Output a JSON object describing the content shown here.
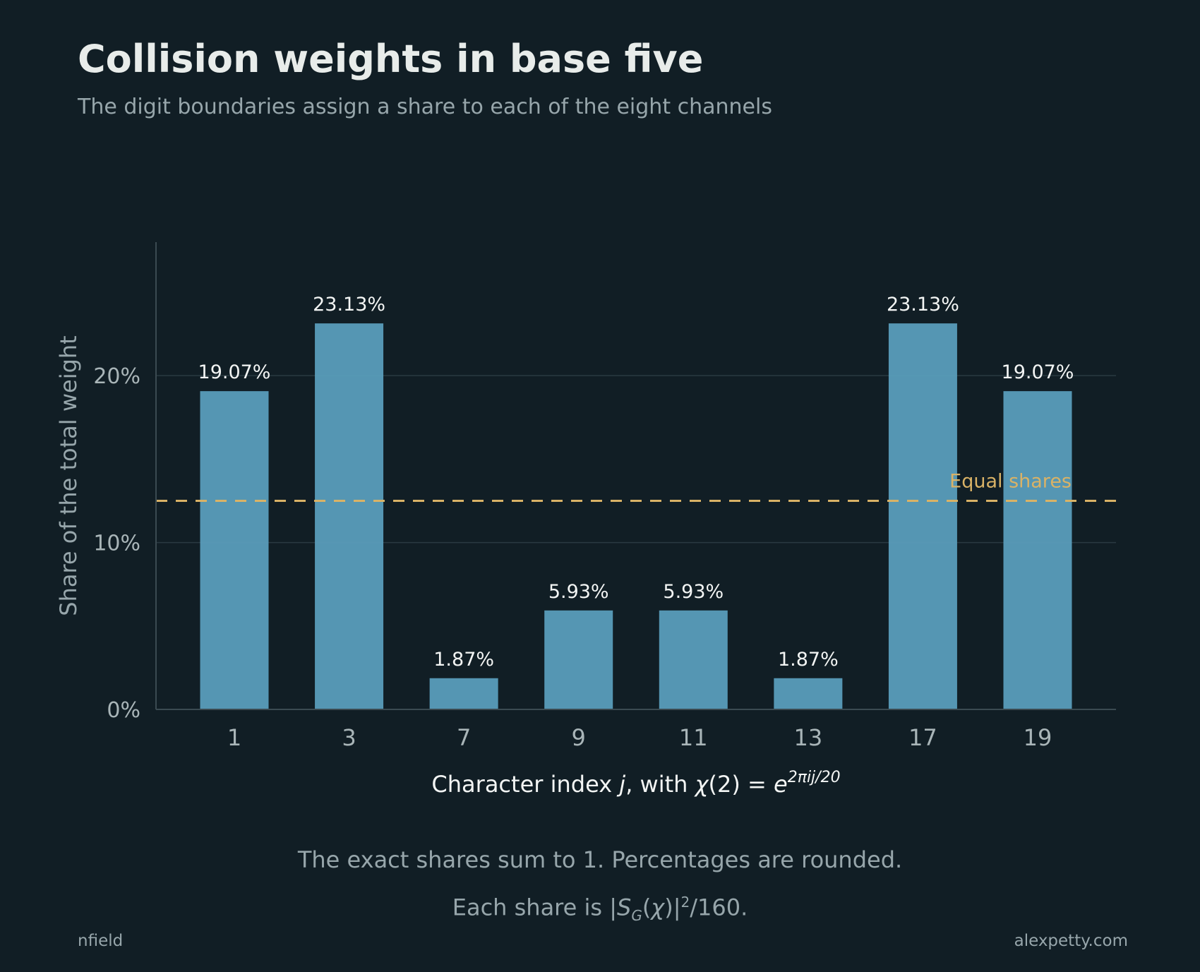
{
  "header": {
    "title": "Collision weights in base five",
    "subtitle": "The digit boundaries assign a share to each of the eight channels"
  },
  "chart_data": {
    "type": "bar",
    "title": "Collision weights in base five",
    "subtitle": "The digit boundaries assign a share to each of the eight channels",
    "categories": [
      "1",
      "3",
      "7",
      "9",
      "11",
      "13",
      "17",
      "19"
    ],
    "values": [
      19.07,
      23.13,
      1.87,
      5.93,
      5.93,
      1.87,
      23.13,
      19.07
    ],
    "data_labels": [
      "19.07%",
      "23.13%",
      "1.87%",
      "5.93%",
      "5.93%",
      "1.87%",
      "23.13%",
      "19.07%"
    ],
    "ylabel": "Share of the total weight",
    "xlabel": "Character index j, with χ(2) = e^(2πij/20)",
    "xlabel_parts": {
      "a": "Character index ",
      "j": "j",
      "b": ", with ",
      "chi": "χ",
      "c": "(2) = ",
      "e": "e",
      "sup": "2πij/20"
    },
    "ylim": [
      0,
      28
    ],
    "yticks": [
      0,
      10,
      20
    ],
    "ytick_labels": [
      "0%",
      "10%",
      "20%"
    ],
    "grid": "horizontal",
    "reference_line": {
      "value": 12.5,
      "label": "Equal shares"
    },
    "colors": {
      "bar": "#5a9dba",
      "reference": "#d9b266",
      "background": "#111e25"
    }
  },
  "notes": {
    "line1": "The exact shares sum to 1. Percentages are rounded.",
    "line2": {
      "a": "Each share is |",
      "S": "S",
      "G": "G",
      "b": "(",
      "chi": "χ",
      "c": ")|",
      "sup": "2",
      "d": "/160."
    }
  },
  "footer": {
    "left": "nfield",
    "right": "alexpetty.com"
  }
}
